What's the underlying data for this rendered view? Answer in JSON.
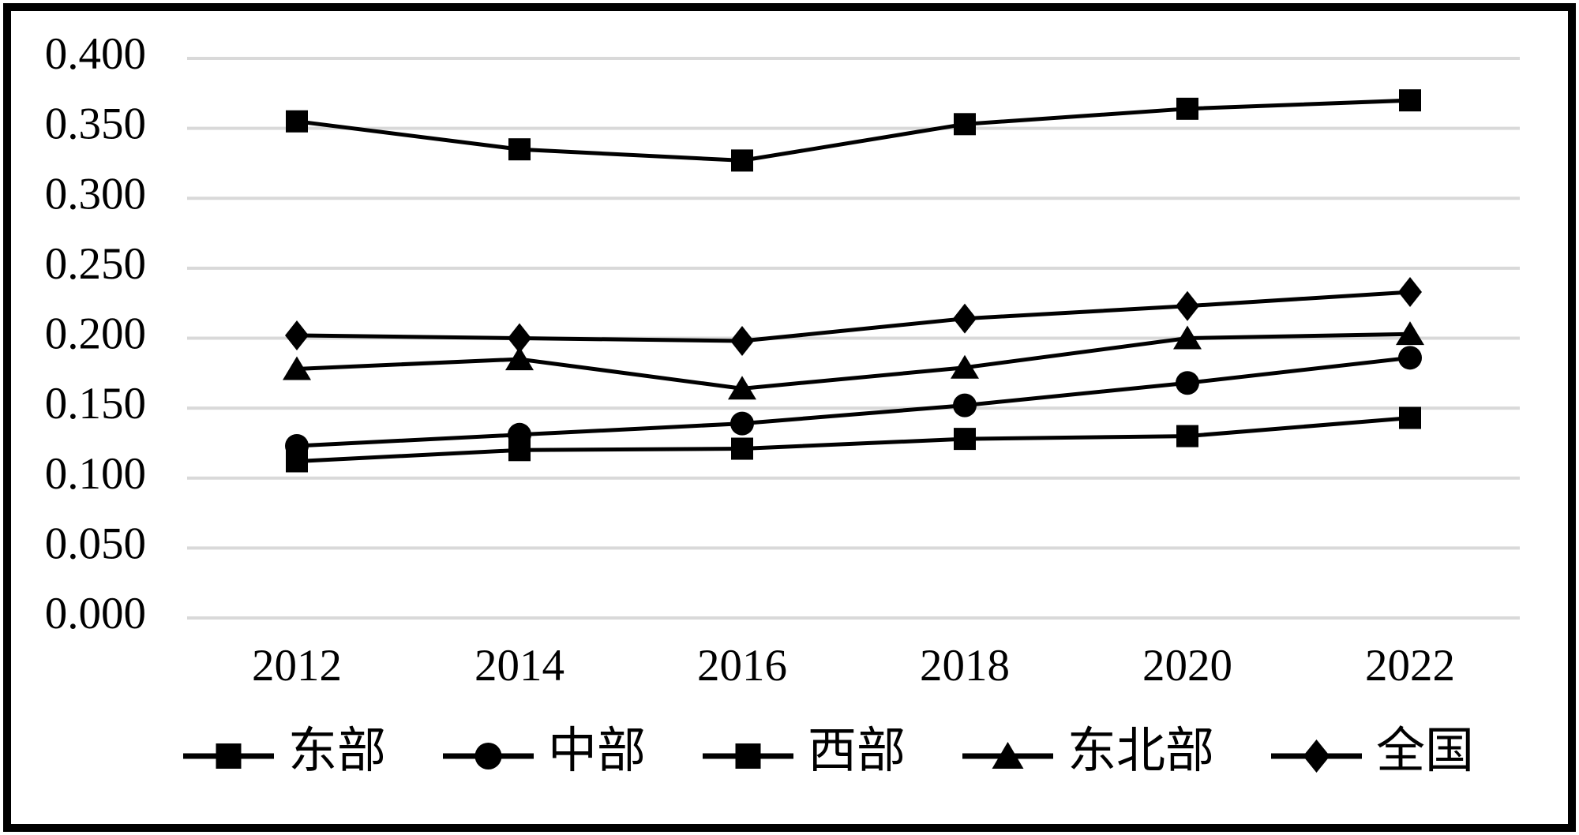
{
  "chart_data": {
    "type": "line",
    "title": "",
    "categories": [
      "2012",
      "2014",
      "2016",
      "2018",
      "2020",
      "2022"
    ],
    "series": [
      {
        "name": "东部",
        "marker": "square",
        "values": [
          0.355,
          0.335,
          0.327,
          0.353,
          0.364,
          0.37
        ]
      },
      {
        "name": "中部",
        "marker": "circle",
        "values": [
          0.123,
          0.131,
          0.139,
          0.152,
          0.168,
          0.186
        ]
      },
      {
        "name": "西部",
        "marker": "square",
        "values": [
          0.112,
          0.12,
          0.121,
          0.128,
          0.13,
          0.143
        ]
      },
      {
        "name": "东北部",
        "marker": "triangle",
        "values": [
          0.178,
          0.185,
          0.164,
          0.179,
          0.2,
          0.203
        ]
      },
      {
        "name": "全国",
        "marker": "diamond",
        "values": [
          0.202,
          0.2,
          0.198,
          0.214,
          0.223,
          0.233
        ]
      }
    ],
    "ylim": [
      0.0,
      0.4
    ],
    "ytick_step": 0.05,
    "ytick_labels": [
      "0.000",
      "0.050",
      "0.100",
      "0.150",
      "0.200",
      "0.250",
      "0.300",
      "0.350",
      "0.400"
    ],
    "grid": true,
    "legend_position": "bottom",
    "colors": {
      "series": "#000000",
      "gridline": "#d9d9d9",
      "frame": "#000000",
      "background": "#ffffff"
    }
  }
}
